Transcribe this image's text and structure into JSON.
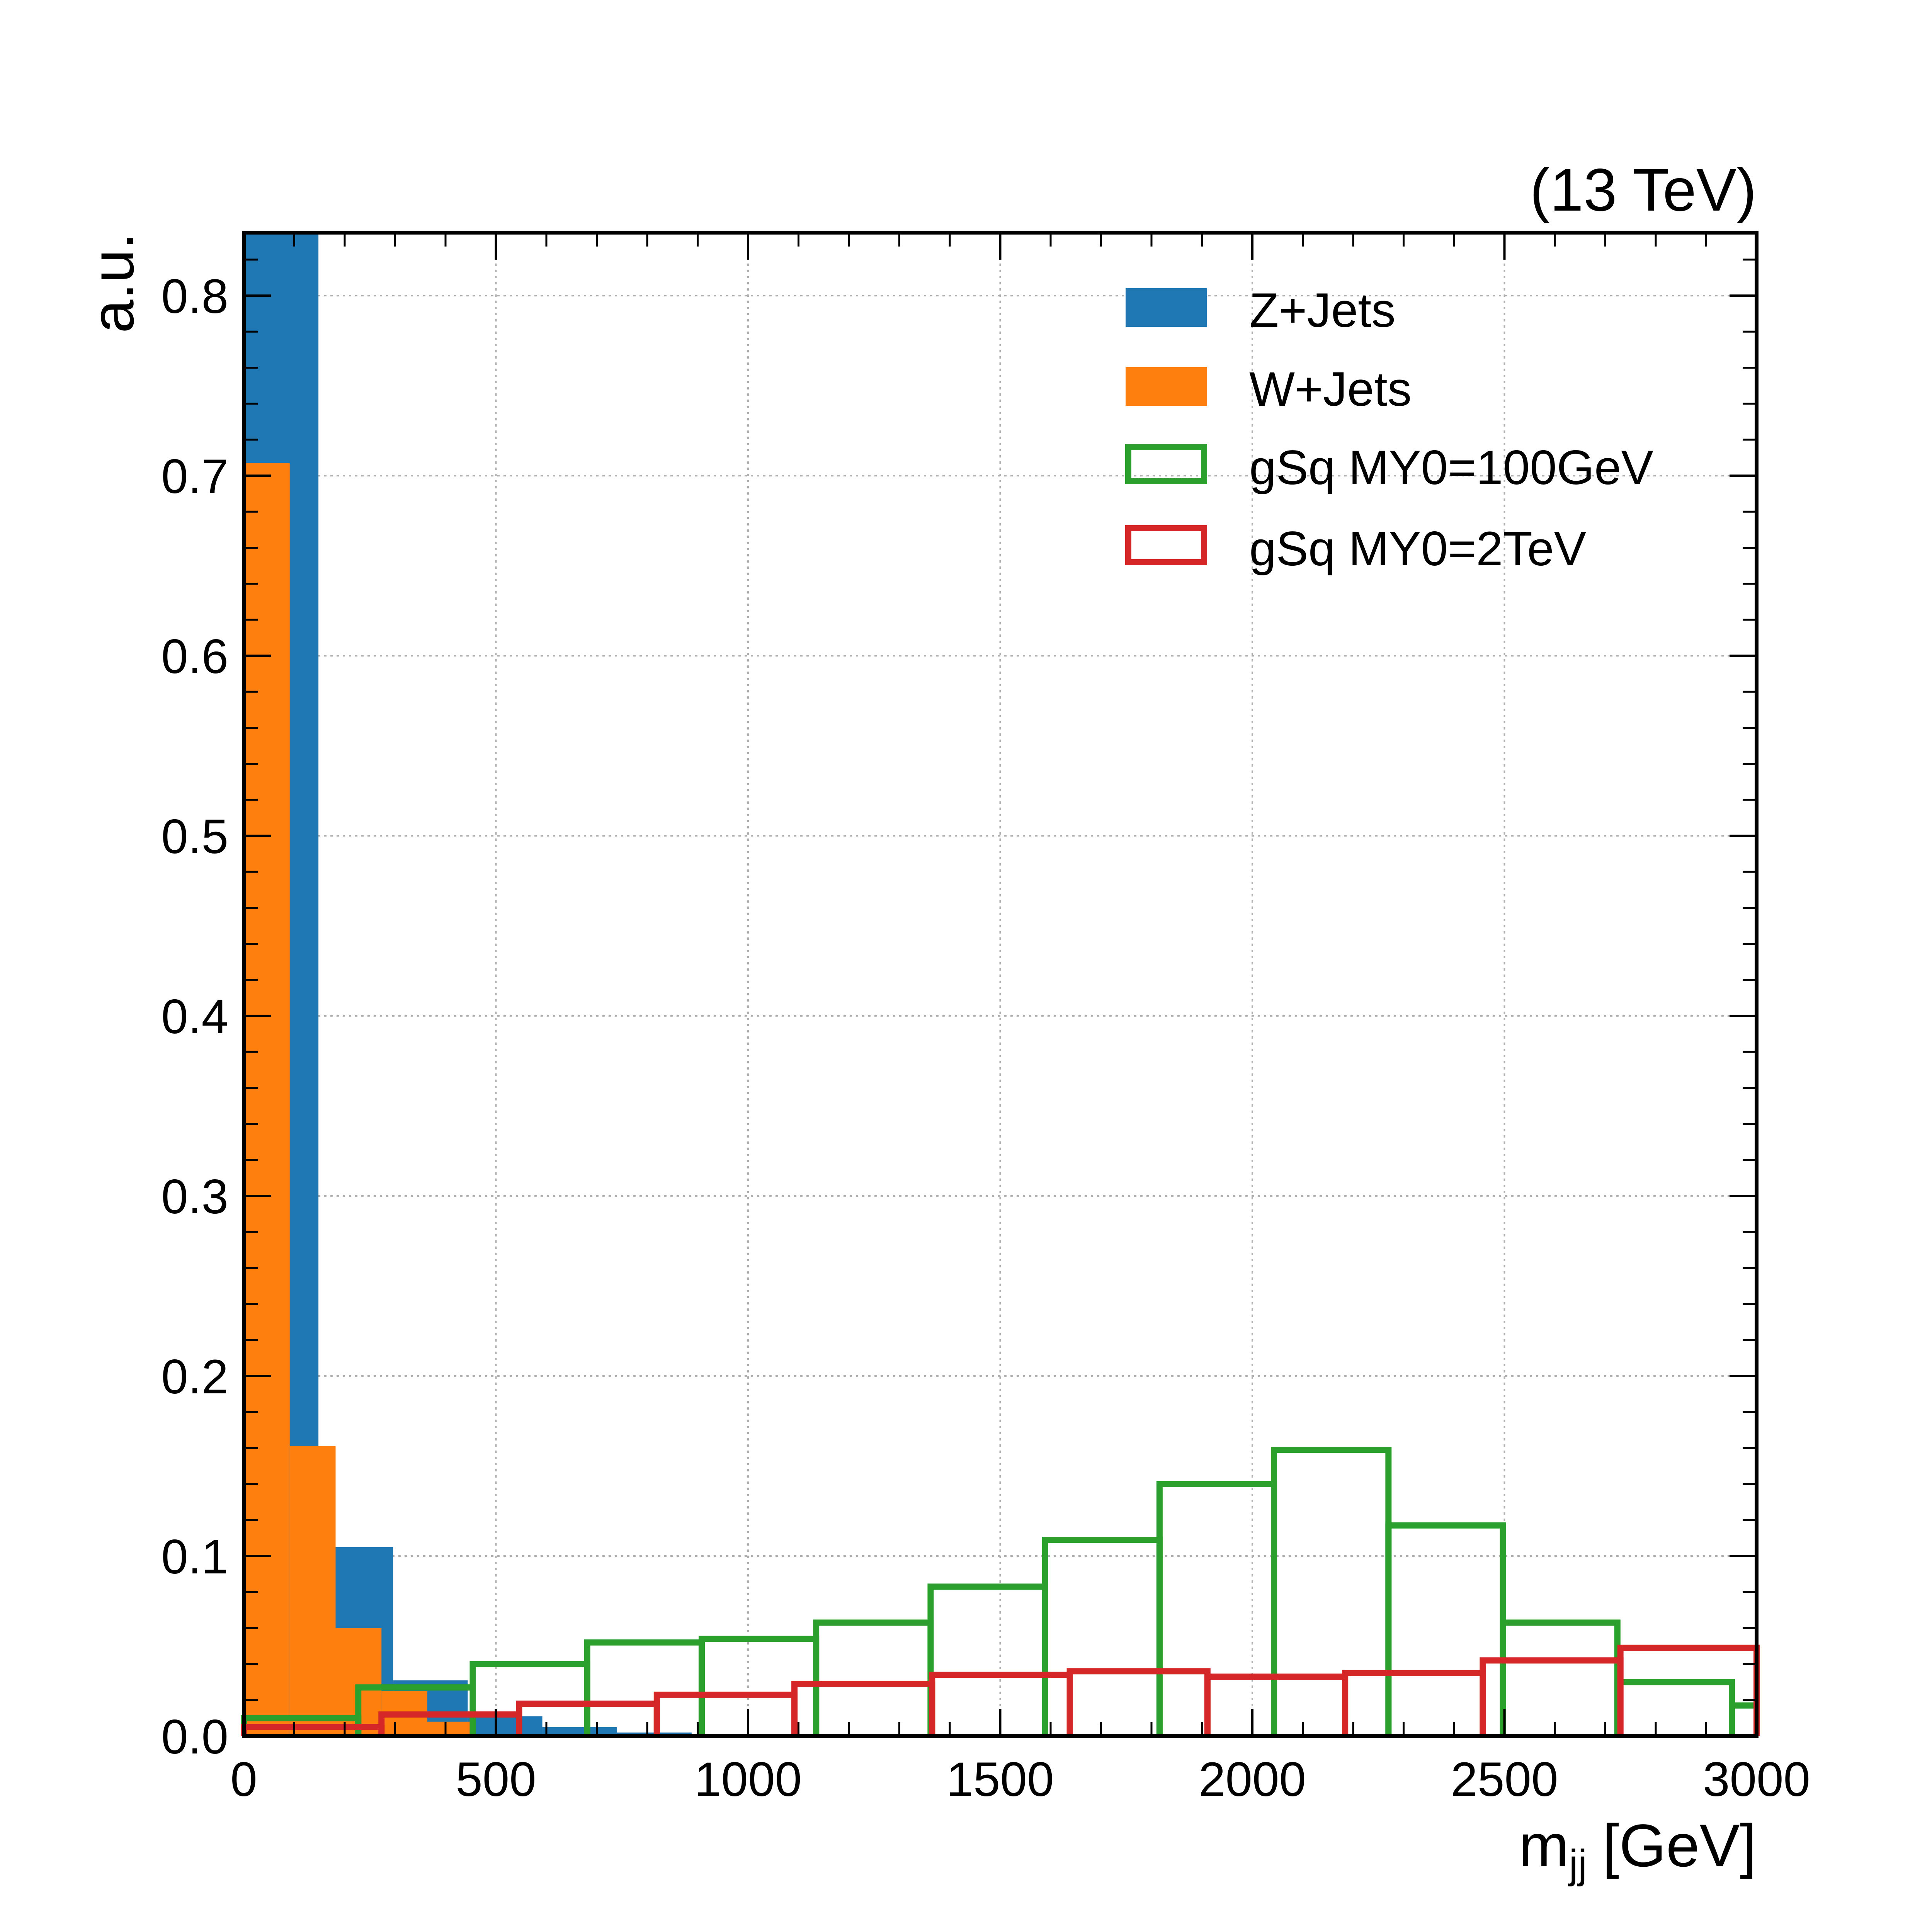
{
  "chart_data": {
    "type": "bar",
    "subtype": "histogram-step",
    "title": "",
    "energy_label": "(13 TeV)",
    "xlabel_main": "m",
    "xlabel_sub": "jj",
    "xlabel_unit": "[GeV]",
    "ylabel": "a.u.",
    "xlim": [
      0,
      3000
    ],
    "ylim": [
      0,
      0.835
    ],
    "xticks": [
      0,
      500,
      1000,
      1500,
      2000,
      2500,
      3000
    ],
    "yticks": [
      0.0,
      0.1,
      0.2,
      0.3,
      0.4,
      0.5,
      0.6,
      0.7,
      0.8
    ],
    "ytick_labels": [
      "0.0",
      "0.1",
      "0.2",
      "0.3",
      "0.4",
      "0.5",
      "0.6",
      "0.7",
      "0.8"
    ],
    "grid": true,
    "legend_position": "top-right",
    "series": [
      {
        "name": "Z+Jets",
        "style": "filled",
        "color": "#1f77b4",
        "edges": [
          0,
          148,
          296,
          444,
          592,
          740,
          888
        ],
        "values": [
          0.835,
          0.105,
          0.031,
          0.011,
          0.005,
          0.002
        ]
      },
      {
        "name": "W+Jets",
        "style": "filled",
        "color": "#ff7f0e",
        "edges": [
          0,
          91,
          182,
          273,
          364,
          455
        ],
        "values": [
          0.707,
          0.161,
          0.06,
          0.025,
          0.008
        ]
      },
      {
        "name": "gSq MY0=100GeV",
        "style": "step",
        "color": "#2ca02c",
        "edges": [
          0,
          227,
          454,
          681,
          908,
          1135,
          1362,
          1589,
          1816,
          2043,
          2270,
          2497,
          2724,
          2951,
          3000
        ],
        "values": [
          0.01,
          0.027,
          0.04,
          0.052,
          0.054,
          0.063,
          0.083,
          0.109,
          0.14,
          0.159,
          0.117,
          0.063,
          0.03,
          0.017
        ]
      },
      {
        "name": "gSq MY0=2TeV",
        "style": "step",
        "color": "#d62728",
        "edges": [
          0,
          273,
          546,
          819,
          1092,
          1365,
          1638,
          1911,
          2184,
          2457,
          2730,
          3000
        ],
        "values": [
          0.005,
          0.012,
          0.018,
          0.023,
          0.029,
          0.034,
          0.036,
          0.033,
          0.035,
          0.042,
          0.049
        ]
      }
    ]
  }
}
